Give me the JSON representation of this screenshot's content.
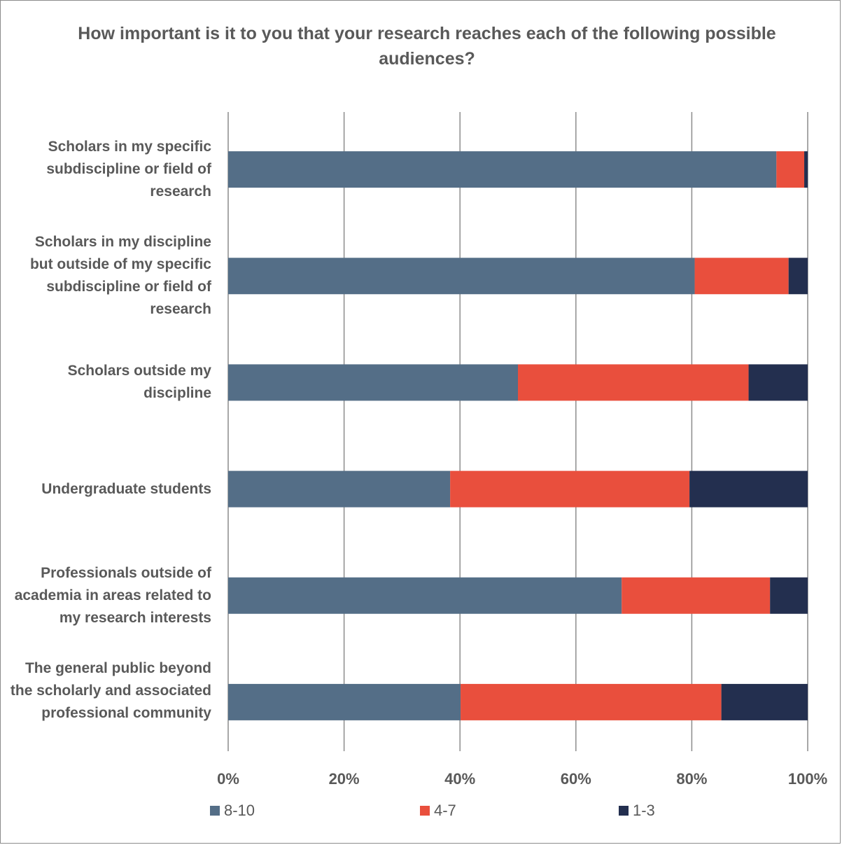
{
  "chart_data": {
    "type": "bar",
    "orientation": "horizontal",
    "stacked": true,
    "percent_stacked": true,
    "title": "How important is it to you that your research reaches each of the following possible audiences?",
    "categories": [
      "Scholars in my specific subdiscipline or field of research",
      "Scholars in my discipline but outside of my specific subdiscipline or field of research",
      "Scholars outside my discipline",
      "Undergraduate students",
      "Professionals outside of academia in areas related to my research interests",
      "The general public beyond the scholarly and associated professional community"
    ],
    "series": [
      {
        "name": "8-10",
        "color": "#546e87",
        "values": [
          94.6,
          80.5,
          50.0,
          38.3,
          67.9,
          40.1
        ]
      },
      {
        "name": "4-7",
        "color": "#e94f3d",
        "values": [
          4.8,
          16.2,
          39.8,
          41.3,
          25.6,
          45.0
        ]
      },
      {
        "name": "1-3",
        "color": "#232f4f",
        "values": [
          0.6,
          3.3,
          10.2,
          20.4,
          6.5,
          14.9
        ]
      }
    ],
    "xlim": [
      0,
      100
    ],
    "x_ticks": [
      "0%",
      "20%",
      "40%",
      "60%",
      "80%",
      "100%"
    ],
    "grid": true,
    "legend_position": "bottom"
  }
}
